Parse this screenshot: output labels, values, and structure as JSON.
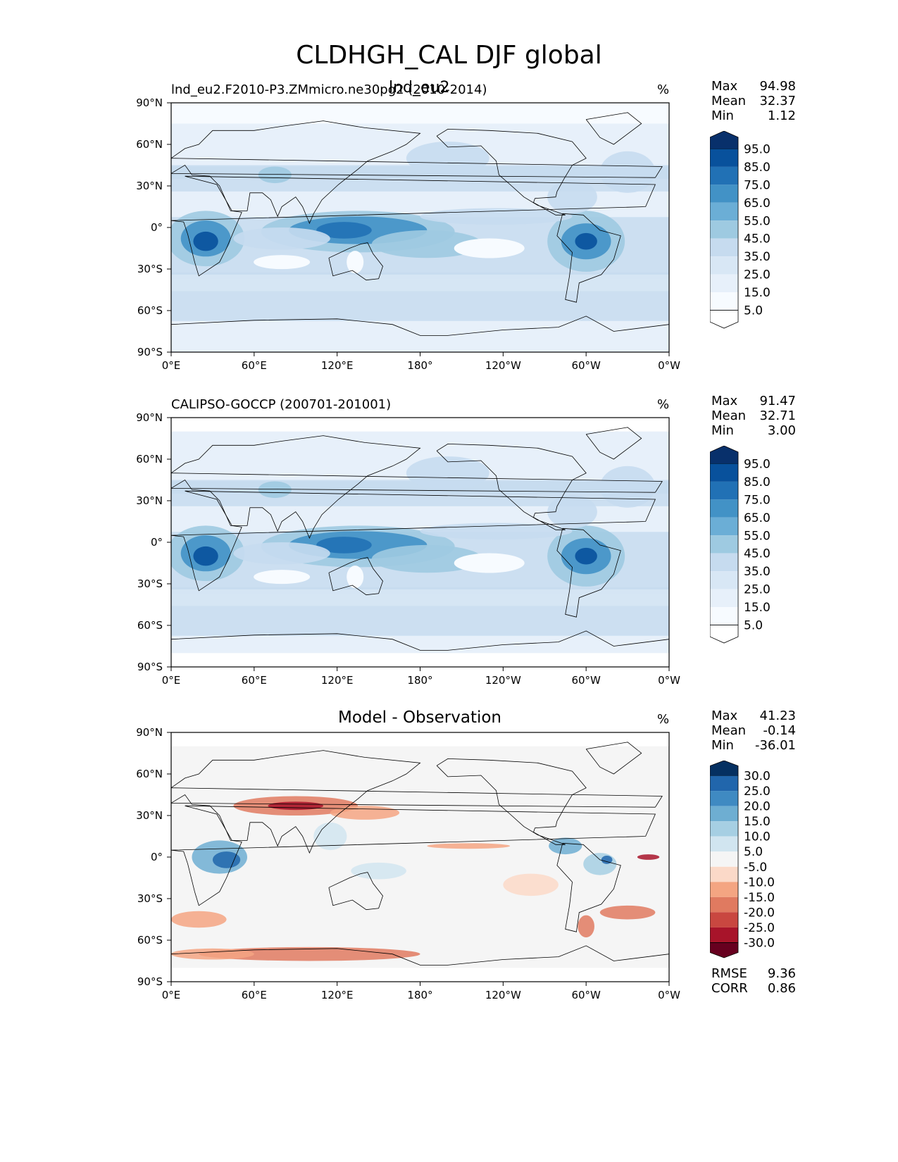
{
  "page": {
    "title": "CLDHGH_CAL DJF global"
  },
  "overlap_title": "lnd_eu2",
  "lat_ticks": [
    "90°N",
    "60°N",
    "30°N",
    "0°",
    "30°S",
    "60°S",
    "90°S"
  ],
  "lon_ticks": [
    "0°E",
    "60°E",
    "120°E",
    "180°",
    "120°W",
    "60°W",
    "0°W"
  ],
  "panels": [
    {
      "left_title": "lnd_eu2.F2010-P3.ZMmicro.ne30pg2 (2010-2014)",
      "center_title": "",
      "units": "%",
      "stats": [
        {
          "label": "Max",
          "value": "94.98"
        },
        {
          "label": "Mean",
          "value": "32.37"
        },
        {
          "label": "Min",
          "value": "1.12"
        }
      ],
      "colorbar_labels": [
        "95.0",
        "85.0",
        "75.0",
        "65.0",
        "55.0",
        "45.0",
        "35.0",
        "25.0",
        "15.0",
        "5.0"
      ],
      "colorbar_colors": [
        "#08306b",
        "#08519c",
        "#2171b5",
        "#4292c6",
        "#6baed6",
        "#9ecae1",
        "#c6dbef",
        "#d8e7f5",
        "#e7f0fa",
        "#f7fbff",
        "#ffffff"
      ],
      "rmse_corr": []
    },
    {
      "left_title": "CALIPSO-GOCCP (200701-201001)",
      "center_title": "",
      "units": "%",
      "stats": [
        {
          "label": "Max",
          "value": "91.47"
        },
        {
          "label": "Mean",
          "value": "32.71"
        },
        {
          "label": "Min",
          "value": "3.00"
        }
      ],
      "colorbar_labels": [
        "95.0",
        "85.0",
        "75.0",
        "65.0",
        "55.0",
        "45.0",
        "35.0",
        "25.0",
        "15.0",
        "5.0"
      ],
      "colorbar_colors": [
        "#08306b",
        "#08519c",
        "#2171b5",
        "#4292c6",
        "#6baed6",
        "#9ecae1",
        "#c6dbef",
        "#d8e7f5",
        "#e7f0fa",
        "#f7fbff",
        "#ffffff"
      ],
      "rmse_corr": []
    },
    {
      "left_title": "",
      "center_title": "Model - Observation",
      "units": "%",
      "stats": [
        {
          "label": "Max",
          "value": "41.23"
        },
        {
          "label": "Mean",
          "value": "-0.14"
        },
        {
          "label": "Min",
          "value": "-36.01"
        }
      ],
      "colorbar_labels": [
        "30.0",
        "25.0",
        "20.0",
        "15.0",
        "10.0",
        "5.0",
        "-5.0",
        "-10.0",
        "-15.0",
        "-20.0",
        "-25.0",
        "-30.0"
      ],
      "colorbar_colors": [
        "#053061",
        "#2166ac",
        "#3f8ac2",
        "#6eaed2",
        "#a6cfe3",
        "#d1e5f0",
        "#f5f5f5",
        "#fbd9c8",
        "#f4a582",
        "#e07a60",
        "#c94740",
        "#a8142a",
        "#67001f"
      ],
      "rmse_corr": [
        {
          "label": "RMSE",
          "value": "9.36"
        },
        {
          "label": "CORR",
          "value": "0.86"
        }
      ]
    }
  ]
}
